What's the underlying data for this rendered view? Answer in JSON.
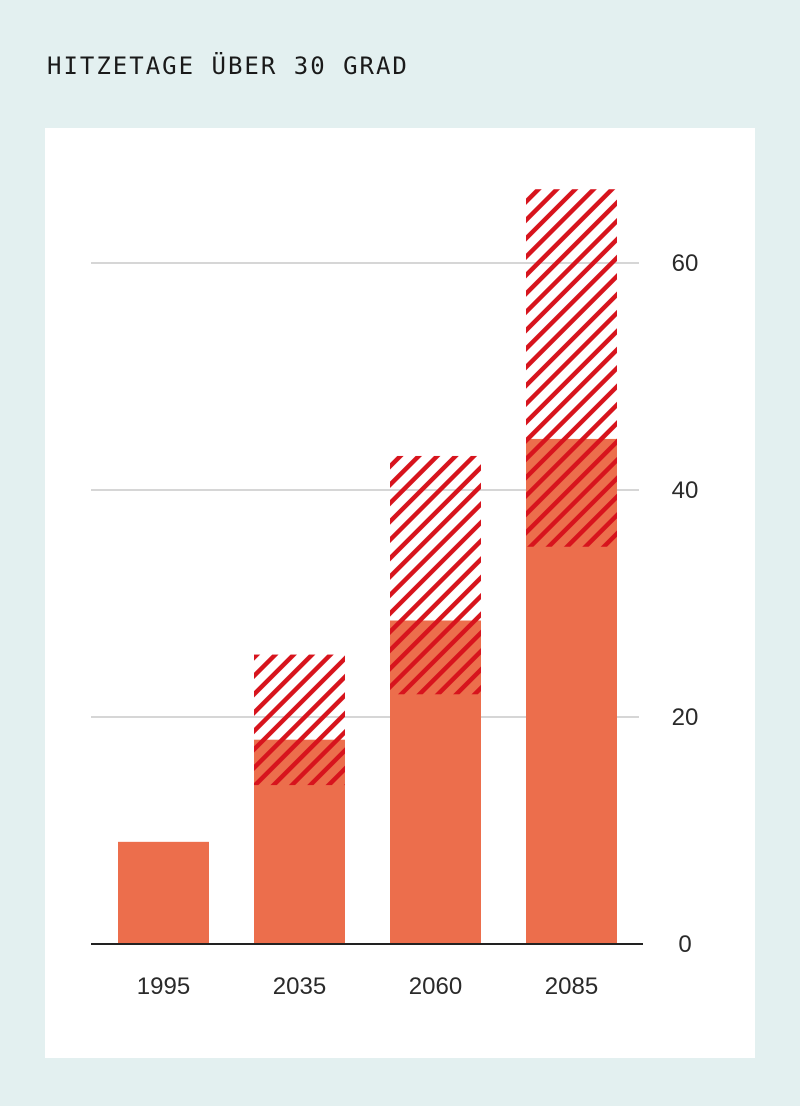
{
  "title": "HITZETAGE ÜBER 30 GRAD",
  "colors": {
    "background": "#e3f0f0",
    "panel": "#ffffff",
    "bar": "#ec6e4c",
    "hatch": "#d7141d",
    "grid": "#c9c9c9",
    "axis": "#222222"
  },
  "chart_data": {
    "type": "bar",
    "title": "HITZETAGE ÜBER 30 GRAD",
    "categories": [
      "1995",
      "2035",
      "2060",
      "2085"
    ],
    "series": [
      {
        "kind": "solid",
        "values": [
          9,
          18,
          28.5,
          44.5
        ]
      },
      {
        "kind": "hatched-range",
        "low": [
          null,
          14,
          22,
          35
        ],
        "high": [
          null,
          25.5,
          43,
          66.5
        ]
      }
    ],
    "yticks": [
      0,
      20,
      40,
      60
    ],
    "ylim": [
      0,
      70
    ],
    "y_axis_side": "right",
    "grid": true,
    "xlabel": "",
    "ylabel": ""
  }
}
